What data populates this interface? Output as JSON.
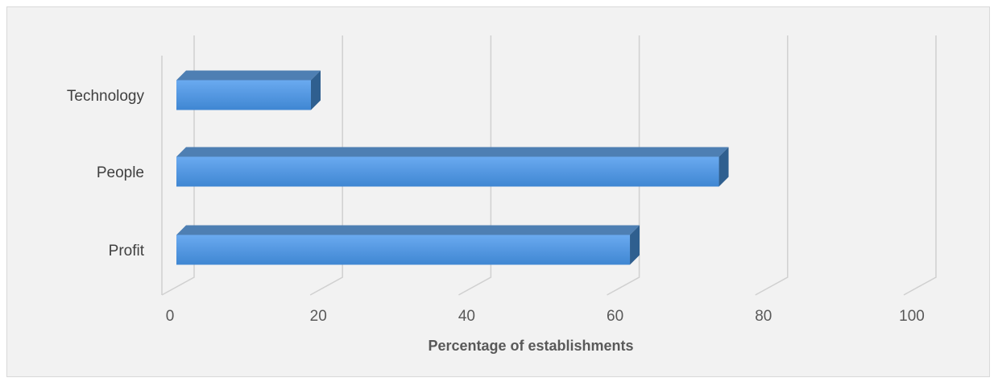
{
  "chart_data": {
    "type": "bar",
    "orientation": "horizontal",
    "style": "3d-clustered-bar",
    "categories": [
      "Profit",
      "People",
      "Technology"
    ],
    "values": [
      62,
      74,
      19
    ],
    "xlabel": "Percentage of establishments",
    "ylabel": "",
    "xlim": [
      0,
      100
    ],
    "xticks": [
      "0",
      "20",
      "40",
      "60",
      "80",
      "100"
    ],
    "grid": "vertical",
    "legend": "none",
    "colors": {
      "bar_front_top": "#6aaaf0",
      "bar_front_bottom": "#3f86d2",
      "bar_top": "#4e7fb3",
      "bar_side": "#2f5f8f",
      "grid": "#d0d0d0",
      "background": "#f2f2f2"
    }
  }
}
